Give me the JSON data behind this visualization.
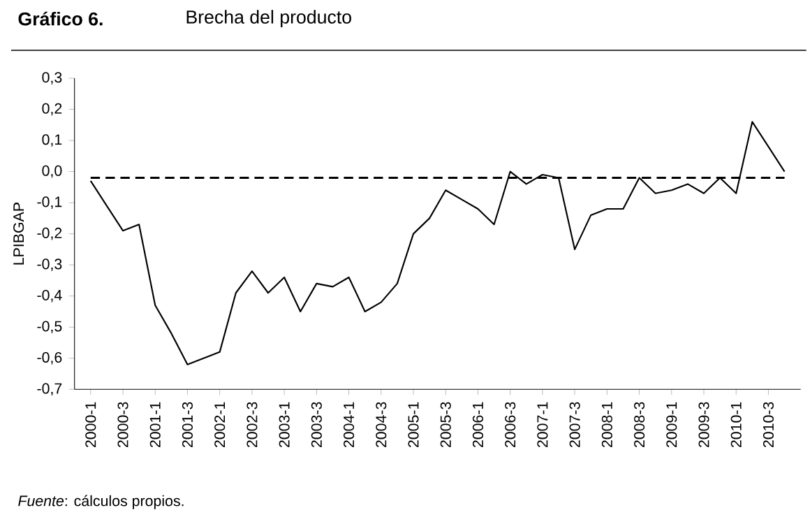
{
  "chart_data": {
    "type": "line",
    "title": "Gráfico 6.",
    "subtitle": "Brecha del producto",
    "ylabel": "LPIBGAP",
    "categories": [
      "2000-1",
      null,
      "2000-3",
      null,
      "2001-1",
      null,
      "2001-3",
      null,
      "2002-1",
      null,
      "2002-3",
      null,
      "2003-1",
      null,
      "2003-3",
      null,
      "2004-1",
      null,
      "2004-3",
      null,
      "2005-1",
      null,
      "2005-3",
      null,
      "2006-1",
      null,
      "2006-3",
      null,
      "2007-1",
      null,
      "2007-3",
      null,
      "2008-1",
      null,
      "2008-3",
      null,
      "2009-1",
      null,
      "2009-3",
      null,
      "2010-1",
      null,
      "2010-3",
      null
    ],
    "values": [
      -0.03,
      -0.11,
      -0.19,
      -0.17,
      -0.43,
      -0.52,
      -0.62,
      -0.6,
      -0.58,
      -0.39,
      -0.32,
      -0.39,
      -0.34,
      -0.45,
      -0.36,
      -0.37,
      -0.34,
      -0.45,
      -0.42,
      -0.36,
      -0.2,
      -0.15,
      -0.06,
      -0.09,
      -0.12,
      -0.17,
      0.0,
      -0.04,
      -0.01,
      -0.02,
      -0.25,
      -0.14,
      -0.12,
      -0.12,
      -0.02,
      -0.07,
      -0.06,
      -0.04,
      -0.07,
      -0.02,
      -0.07,
      0.16,
      0.08,
      0.0
    ],
    "color": "#000000",
    "marker": "none",
    "line_style": "solid",
    "ylim": [
      -0.7,
      0.3
    ],
    "yticks": [
      {
        "value": 0.3,
        "label": "0,3"
      },
      {
        "value": 0.2,
        "label": "0,2"
      },
      {
        "value": 0.1,
        "label": "0,1"
      },
      {
        "value": 0.0,
        "label": "0,0"
      },
      {
        "value": -0.1,
        "label": "-0,1"
      },
      {
        "value": -0.2,
        "label": "-0,2"
      },
      {
        "value": -0.3,
        "label": "-0,3"
      },
      {
        "value": -0.4,
        "label": "-0,4"
      },
      {
        "value": -0.5,
        "label": "-0,5"
      },
      {
        "value": -0.6,
        "label": "-0,6"
      },
      {
        "value": -0.7,
        "label": "-0,7"
      }
    ],
    "ref_lines": [
      {
        "axis": "y",
        "value": -0.02,
        "line_style": "dashed",
        "color": "#000000"
      }
    ],
    "annotations": [
      "*Fuente*: cálculos propios."
    ]
  }
}
